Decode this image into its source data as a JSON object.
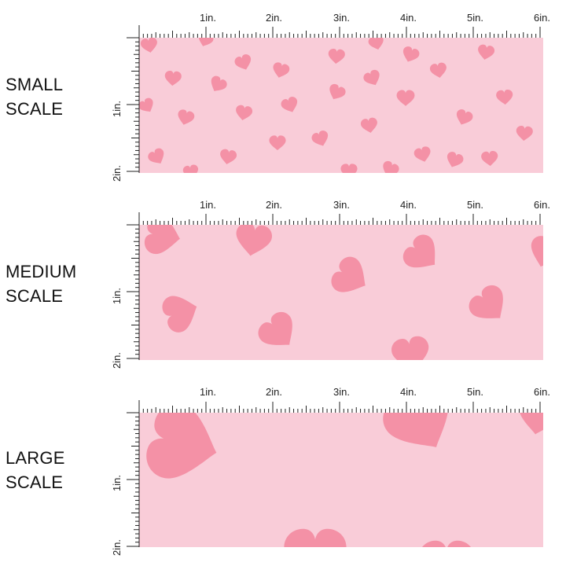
{
  "colors": {
    "fabric_background": "#f9ccd8",
    "heart": "#f491a6",
    "ruler": "#222222",
    "page_background": "#ffffff"
  },
  "icons": [
    "heart-icon"
  ],
  "rows": [
    {
      "id": "small",
      "label_line1": "SMALL",
      "label_line2": "SCALE",
      "pattern_scale": "small",
      "top_ruler_labels": [
        "1in.",
        "2in.",
        "3in.",
        "4in.",
        "5in.",
        "6in."
      ],
      "side_ruler_labels": [
        "1in.",
        "2in."
      ]
    },
    {
      "id": "medium",
      "label_line1": "MEDIUM",
      "label_line2": "SCALE",
      "pattern_scale": "medium",
      "top_ruler_labels": [
        "1in.",
        "2in.",
        "3in.",
        "4in.",
        "5in.",
        "6in."
      ],
      "side_ruler_labels": [
        "1in.",
        "2in."
      ]
    },
    {
      "id": "large",
      "label_line1": "LARGE",
      "label_line2": "SCALE",
      "pattern_scale": "large",
      "top_ruler_labels": [
        "1in.",
        "2in.",
        "3in.",
        "4in.",
        "5in.",
        "6in."
      ],
      "side_ruler_labels": [
        "1in.",
        "2in."
      ]
    }
  ]
}
